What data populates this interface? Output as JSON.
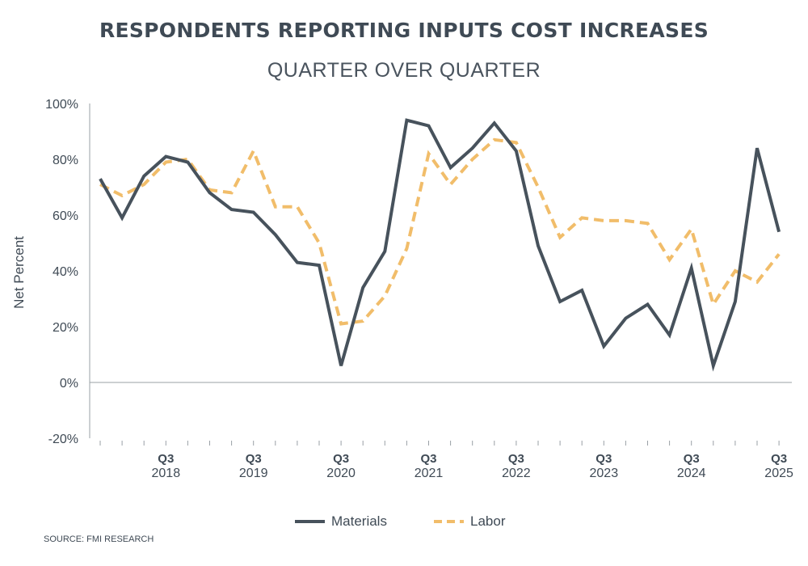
{
  "chart_data": {
    "type": "line",
    "title": "RESPONDENTS REPORTING INPUTS COST INCREASES",
    "subtitle": "QUARTER OVER QUARTER",
    "ylabel": "Net Percent",
    "ylim": [
      -20,
      100
    ],
    "yticks": [
      "100%",
      "80%",
      "60%",
      "40%",
      "20%",
      "0%",
      "-20%"
    ],
    "ytick_values": [
      100,
      80,
      60,
      40,
      20,
      0,
      -20
    ],
    "xticks": [
      {
        "quarter": "Q3",
        "year": "2018"
      },
      {
        "quarter": "Q3",
        "year": "2019"
      },
      {
        "quarter": "Q3",
        "year": "2020"
      },
      {
        "quarter": "Q3",
        "year": "2021"
      },
      {
        "quarter": "Q3",
        "year": "2022"
      },
      {
        "quarter": "Q3",
        "year": "2023"
      },
      {
        "quarter": "Q3",
        "year": "2024"
      },
      {
        "quarter": "Q3",
        "year": "2025"
      }
    ],
    "x": [
      "2017 Q4",
      "2018 Q1",
      "2018 Q2",
      "2018 Q3",
      "2018 Q4",
      "2019 Q1",
      "2019 Q2",
      "2019 Q3",
      "2019 Q4",
      "2020 Q1",
      "2020 Q2",
      "2020 Q3",
      "2020 Q4",
      "2021 Q1",
      "2021 Q2",
      "2021 Q3",
      "2021 Q4",
      "2022 Q1",
      "2022 Q2",
      "2022 Q3",
      "2022 Q4",
      "2023 Q1",
      "2023 Q2",
      "2023 Q3",
      "2023 Q4",
      "2024 Q1",
      "2024 Q2",
      "2024 Q3",
      "2024 Q4",
      "2025 Q1",
      "2025 Q2",
      "2025 Q3"
    ],
    "series": [
      {
        "name": "Materials",
        "color": "#47525c",
        "style": "solid",
        "values": [
          73,
          59,
          74,
          81,
          79,
          68,
          62,
          61,
          53,
          43,
          42,
          6,
          34,
          47,
          94,
          92,
          77,
          84,
          93,
          83,
          49,
          29,
          33,
          13,
          23,
          28,
          17,
          41,
          6,
          29,
          84,
          54
        ]
      },
      {
        "name": "Labor",
        "color": "#f1bd6a",
        "style": "dashed",
        "values": [
          71,
          67,
          71,
          79,
          80,
          69,
          68,
          83,
          63,
          63,
          50,
          21,
          22,
          31,
          48,
          82,
          71,
          80,
          87,
          86,
          70,
          52,
          59,
          58,
          58,
          57,
          44,
          55,
          28,
          40,
          36,
          46
        ]
      }
    ],
    "grid": false,
    "legend_position": "bottom-center"
  },
  "source": "SOURCE: FMI RESEARCH"
}
